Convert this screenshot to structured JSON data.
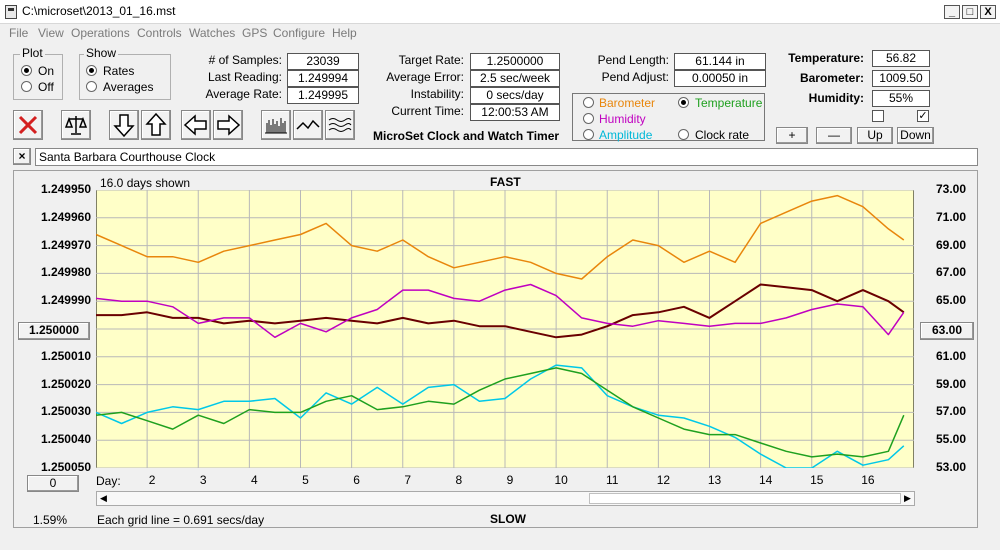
{
  "window": {
    "title": "C:\\microset\\2013_01_16.mst",
    "minimize": "_",
    "maximize": "□",
    "close": "X"
  },
  "menu": [
    "File",
    "View",
    "Operations",
    "Controls",
    "Watches",
    "GPS",
    "Configure",
    "Help"
  ],
  "plot_group": {
    "title": "Plot",
    "on": "On",
    "off": "Off",
    "selected": "On"
  },
  "show_group": {
    "title": "Show",
    "rates": "Rates",
    "averages": "Averages",
    "selected": "Rates"
  },
  "stats": {
    "samples_label": "# of Samples:",
    "samples": "23039",
    "last_label": "Last Reading:",
    "last": "1.249994",
    "avg_rate_label": "Average Rate:",
    "avg_rate": "1.249995",
    "target_label": "Target Rate:",
    "target": "1.2500000",
    "avg_err_label": "Average Error:",
    "avg_err": "2.5 sec/week",
    "instab_label": "Instability:",
    "instab": "0 secs/day",
    "time_label": "Current Time:",
    "time": "12:00:53 AM",
    "app_name": "MicroSet Clock and Watch Timer",
    "pend_len_label": "Pend Length:",
    "pend_len": "61.144 in",
    "pend_adj_label": "Pend Adjust:",
    "pend_adj": "0.00050 in",
    "temp_label": "Temperature:",
    "temp": "56.82",
    "baro_label": "Barometer:",
    "baro": "1009.50",
    "hum_label": "Humidity:",
    "hum": "55%"
  },
  "aux_selector": {
    "barometer": "Barometer",
    "temperature": "Temperature",
    "humidity": "Humidity",
    "amplitude": "Amplitude",
    "clock_rate": "Clock rate",
    "selected": "Temperature"
  },
  "aux_buttons": {
    "plus": "+",
    "minus": "—",
    "up": "Up",
    "down": "Down",
    "check2": "✓"
  },
  "colors": {
    "barometer": "#e8860c",
    "temperature": "#1fa01f",
    "humidity": "#c000c0",
    "amplitude": "#00c8e8",
    "rate": "#6a0000",
    "plot_bg": "#ffffc8"
  },
  "title_field": "Santa Barbara Courthouse Clock",
  "chart_header": {
    "days_shown": "16.0 days shown",
    "fast": "FAST",
    "slow": "SLOW",
    "grid_note": "Each grid line = 0.691 secs/day",
    "left_bottom": "1.59%",
    "cursor_left": "1.250000",
    "cursor_right": "63.00",
    "day_spin": "0",
    "day_label": "Day:"
  },
  "chart_data": {
    "type": "line",
    "xlabel": "Day:",
    "x_ticks": [
      "2",
      "3",
      "4",
      "5",
      "6",
      "7",
      "8",
      "9",
      "10",
      "11",
      "12",
      "13",
      "14",
      "15",
      "16"
    ],
    "xlim": [
      1,
      17
    ],
    "y_ticks": [
      "1.249950",
      "1.249960",
      "1.249970",
      "1.249980",
      "1.249990",
      "1.250000",
      "1.250010",
      "1.250020",
      "1.250030",
      "1.250040",
      "1.250050"
    ],
    "ylim": [
      1.24995,
      1.25005
    ],
    "y2_ticks": [
      "73.00",
      "71.00",
      "69.00",
      "67.00",
      "65.00",
      "63.00",
      "61.00",
      "59.00",
      "57.00",
      "55.00",
      "53.00"
    ],
    "y2lim": [
      53,
      73
    ],
    "series": [
      {
        "name": "Barometer",
        "axis": "left",
        "x": [
          1.0,
          1.5,
          2.0,
          2.5,
          3.0,
          3.5,
          4.0,
          4.5,
          5.0,
          5.5,
          6.0,
          6.5,
          7.0,
          7.5,
          8.0,
          8.5,
          9.0,
          9.5,
          10.0,
          10.5,
          11.0,
          11.5,
          12.0,
          12.5,
          13.0,
          13.5,
          14.0,
          14.5,
          15.0,
          15.5,
          16.0,
          16.5,
          16.8
        ],
        "y": [
          1.249966,
          1.24997,
          1.249974,
          1.249974,
          1.249976,
          1.249972,
          1.24997,
          1.249968,
          1.249966,
          1.249962,
          1.24997,
          1.249972,
          1.249968,
          1.249974,
          1.249978,
          1.249976,
          1.249974,
          1.249976,
          1.24998,
          1.249982,
          1.249974,
          1.249968,
          1.24997,
          1.249976,
          1.249972,
          1.249976,
          1.249962,
          1.249958,
          1.249954,
          1.249952,
          1.249956,
          1.249964,
          1.249968
        ]
      },
      {
        "name": "Clock rate",
        "axis": "left",
        "x": [
          1.0,
          1.5,
          2.0,
          2.5,
          3.0,
          3.5,
          4.0,
          4.5,
          5.0,
          5.5,
          6.0,
          6.5,
          7.0,
          7.5,
          8.0,
          8.5,
          9.0,
          9.5,
          10.0,
          10.5,
          11.0,
          11.5,
          12.0,
          12.5,
          13.0,
          13.5,
          14.0,
          14.5,
          15.0,
          15.5,
          16.0,
          16.5,
          16.8
        ],
        "y": [
          1.249995,
          1.249995,
          1.249994,
          1.249996,
          1.249996,
          1.249998,
          1.249997,
          1.249998,
          1.249997,
          1.249996,
          1.249997,
          1.249998,
          1.249996,
          1.249998,
          1.249997,
          1.249999,
          1.249999,
          1.250001,
          1.250003,
          1.250002,
          1.249999,
          1.249995,
          1.249994,
          1.249992,
          1.249996,
          1.24999,
          1.249984,
          1.249985,
          1.249986,
          1.24999,
          1.249986,
          1.24999,
          1.249994
        ]
      },
      {
        "name": "Humidity",
        "axis": "left",
        "x": [
          1.0,
          1.5,
          2.0,
          2.5,
          3.0,
          3.5,
          4.0,
          4.5,
          5.0,
          5.5,
          6.0,
          6.5,
          7.0,
          7.5,
          8.0,
          8.5,
          9.0,
          9.5,
          10.0,
          10.5,
          11.0,
          11.5,
          12.0,
          12.5,
          13.0,
          13.5,
          14.0,
          14.5,
          15.0,
          15.5,
          16.0,
          16.5,
          16.8
        ],
        "y": [
          1.249989,
          1.24999,
          1.24999,
          1.249992,
          1.249998,
          1.249996,
          1.249996,
          1.250003,
          1.249998,
          1.250001,
          1.249996,
          1.249993,
          1.249986,
          1.249986,
          1.249989,
          1.24999,
          1.249986,
          1.249984,
          1.249988,
          1.249996,
          1.249998,
          1.249999,
          1.249997,
          1.249998,
          1.249999,
          1.249998,
          1.249998,
          1.249996,
          1.249993,
          1.249991,
          1.249992,
          1.250002,
          1.249994
        ]
      },
      {
        "name": "Amplitude",
        "axis": "left",
        "x": [
          1.0,
          1.5,
          2.0,
          2.5,
          3.0,
          3.5,
          4.0,
          4.5,
          5.0,
          5.5,
          6.0,
          6.5,
          7.0,
          7.5,
          8.0,
          8.5,
          9.0,
          9.5,
          10.0,
          10.5,
          11.0,
          11.5,
          12.0,
          12.5,
          13.0,
          13.5,
          14.0,
          14.5,
          15.0,
          15.5,
          16.0,
          16.5,
          16.8
        ],
        "y": [
          1.25003,
          1.250034,
          1.25003,
          1.250028,
          1.250029,
          1.250026,
          1.250026,
          1.250025,
          1.250032,
          1.250023,
          1.250027,
          1.250021,
          1.250027,
          1.250021,
          1.25002,
          1.250026,
          1.250025,
          1.250018,
          1.250013,
          1.250014,
          1.250024,
          1.250028,
          1.250031,
          1.250032,
          1.250035,
          1.250039,
          1.250045,
          1.25005,
          1.25005,
          1.250044,
          1.250049,
          1.250047,
          1.250042
        ]
      },
      {
        "name": "Temperature",
        "axis": "left",
        "x": [
          1.0,
          1.5,
          2.0,
          2.5,
          3.0,
          3.5,
          4.0,
          4.5,
          5.0,
          5.5,
          6.0,
          6.5,
          7.0,
          7.5,
          8.0,
          8.5,
          9.0,
          9.5,
          10.0,
          10.5,
          11.0,
          11.5,
          12.0,
          12.5,
          13.0,
          13.5,
          14.0,
          14.5,
          15.0,
          15.5,
          16.0,
          16.5,
          16.8
        ],
        "y": [
          1.250031,
          1.25003,
          1.250033,
          1.250036,
          1.250031,
          1.250034,
          1.250029,
          1.25003,
          1.25003,
          1.250026,
          1.250024,
          1.250029,
          1.250028,
          1.250026,
          1.250027,
          1.250022,
          1.250018,
          1.250016,
          1.250014,
          1.250016,
          1.250022,
          1.250028,
          1.250032,
          1.250036,
          1.250038,
          1.250038,
          1.250041,
          1.250044,
          1.250046,
          1.250045,
          1.250046,
          1.250044,
          1.250031
        ]
      }
    ]
  }
}
